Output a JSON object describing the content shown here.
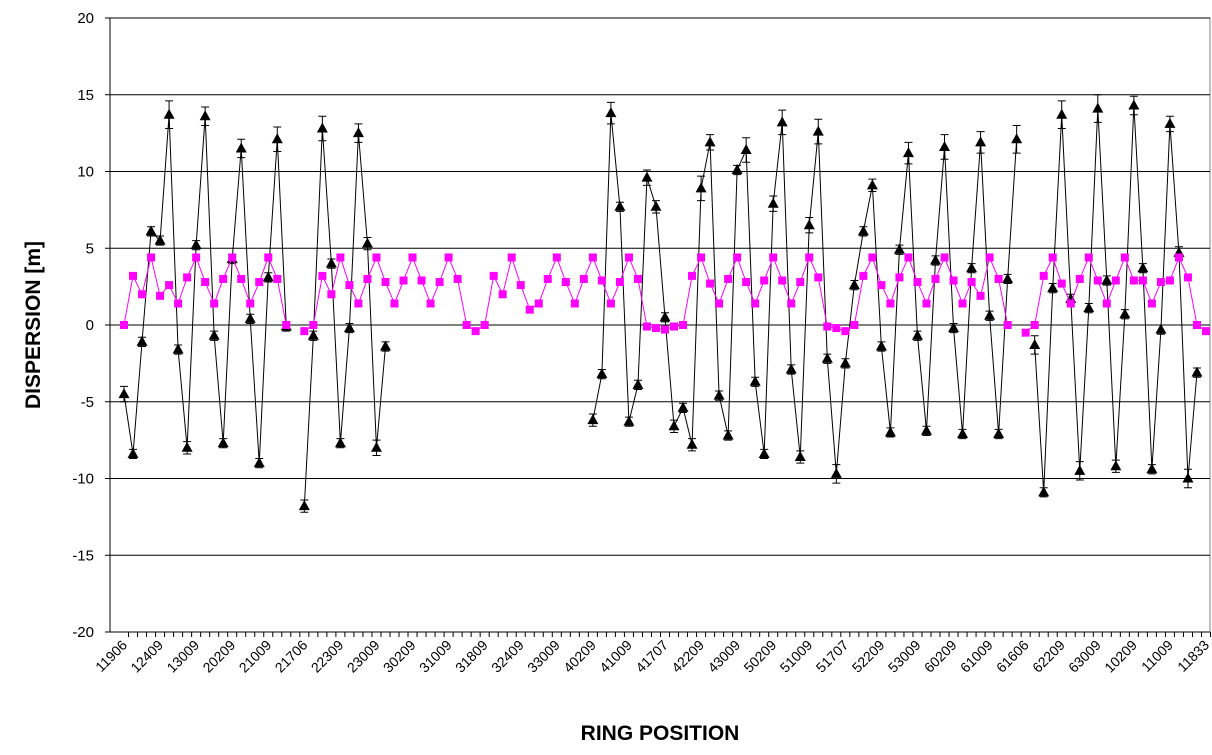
{
  "chart_data": {
    "type": "line",
    "x_label": "RING POSITION",
    "y_label": "DISPERSION  [m]",
    "ylim": [
      -20,
      20
    ],
    "yticks": [
      -20,
      -15,
      -10,
      -5,
      0,
      5,
      10,
      15,
      20
    ],
    "grid": true,
    "categories": [
      "11906",
      null,
      null,
      null,
      "12409",
      null,
      null,
      null,
      "13009",
      null,
      null,
      null,
      "20209",
      null,
      null,
      null,
      "21009",
      null,
      null,
      null,
      "21706",
      null,
      null,
      null,
      "22309",
      null,
      null,
      null,
      "23009",
      null,
      null,
      null,
      "30209",
      null,
      null,
      null,
      "31009",
      null,
      null,
      null,
      "31809",
      null,
      null,
      null,
      "32409",
      null,
      null,
      null,
      "33009",
      null,
      null,
      null,
      "40209",
      null,
      null,
      null,
      "41009",
      null,
      null,
      null,
      "41707",
      null,
      null,
      null,
      "42209",
      null,
      null,
      null,
      "43009",
      null,
      null,
      null,
      "50209",
      null,
      null,
      null,
      "51009",
      null,
      null,
      null,
      "51707",
      null,
      null,
      null,
      "52209",
      null,
      null,
      null,
      "53009",
      null,
      null,
      null,
      "60209",
      null,
      null,
      null,
      "61009",
      null,
      null,
      null,
      "61606",
      null,
      null,
      null,
      "62209",
      null,
      null,
      null,
      "63009",
      null,
      null,
      null,
      "10209",
      null,
      null,
      null,
      "11009",
      null,
      null,
      null,
      "11833"
    ],
    "series": [
      {
        "color": "#000000",
        "marker": "triangle",
        "values": [
          -4.5,
          -8.4,
          -1.1,
          6.1,
          5.5,
          13.7,
          -1.6,
          -8.0,
          5.2,
          13.6,
          -0.7,
          -7.7,
          4.3,
          11.5,
          0.4,
          -9.0,
          3.1,
          12.1,
          -0.1,
          null,
          -11.8,
          -0.7,
          12.8,
          4.0,
          -7.7,
          -0.2,
          12.5,
          5.3,
          -8.0,
          -1.4,
          null,
          null,
          null,
          null,
          null,
          null,
          null,
          null,
          null,
          null,
          null,
          null,
          null,
          null,
          null,
          null,
          null,
          null,
          null,
          null,
          null,
          null,
          -6.2,
          -3.2,
          13.8,
          7.7,
          -6.3,
          -3.9,
          9.6,
          7.7,
          0.5,
          -6.6,
          -5.4,
          -7.8,
          8.9,
          11.9,
          -4.6,
          -7.2,
          10.1,
          11.4,
          -3.7,
          -8.4,
          7.9,
          13.2,
          -2.9,
          -8.6,
          6.5,
          12.6,
          -2.2,
          -9.7,
          -2.5,
          2.6,
          6.1,
          9.1,
          -1.4,
          -7.0,
          4.9,
          11.2,
          -0.7,
          -6.9,
          4.2,
          11.6,
          -0.2,
          -7.1,
          3.7,
          11.9,
          0.6,
          -7.1,
          3.0,
          12.1,
          null,
          -1.3,
          -10.9,
          2.4,
          13.7,
          1.7,
          -9.5,
          1.1,
          14.1,
          2.9,
          -9.2,
          0.7,
          14.3,
          3.7,
          -9.4,
          -0.3,
          13.1,
          4.7,
          -10.0,
          -3.1,
          null
        ],
        "errors": [
          0.5,
          0.3,
          0.3,
          0.3,
          0.3,
          0.9,
          0.3,
          0.4,
          0.3,
          0.6,
          0.3,
          0.3,
          0.3,
          0.6,
          0.3,
          0.3,
          0.3,
          0.8,
          0.3,
          null,
          0.4,
          0.3,
          0.8,
          0.3,
          0.3,
          0.3,
          0.6,
          0.4,
          0.5,
          0.3,
          null,
          null,
          null,
          null,
          null,
          null,
          null,
          null,
          null,
          null,
          null,
          null,
          null,
          null,
          null,
          null,
          null,
          null,
          null,
          null,
          null,
          null,
          0.4,
          0.3,
          0.7,
          0.3,
          0.3,
          0.3,
          0.5,
          0.4,
          0.3,
          0.4,
          0.3,
          0.4,
          0.8,
          0.5,
          0.3,
          0.3,
          0.3,
          0.8,
          0.3,
          0.3,
          0.5,
          0.8,
          0.3,
          0.4,
          0.5,
          0.8,
          0.3,
          0.6,
          0.3,
          0.3,
          0.3,
          0.4,
          0.3,
          0.3,
          0.3,
          0.7,
          0.3,
          0.3,
          0.3,
          0.8,
          0.3,
          0.3,
          0.3,
          0.7,
          0.3,
          0.3,
          0.3,
          0.9,
          null,
          0.6,
          0.3,
          0.3,
          0.9,
          0.3,
          0.6,
          0.3,
          0.9,
          0.3,
          0.4,
          0.3,
          0.6,
          0.3,
          0.3,
          0.3,
          0.5,
          0.4,
          0.6,
          0.3,
          null
        ]
      },
      {
        "color": "#ff00ff",
        "marker": "square",
        "values": [
          0.0,
          3.2,
          2.0,
          4.4,
          1.9,
          2.6,
          1.4,
          3.1,
          4.4,
          2.8,
          1.4,
          3.0,
          4.4,
          3.0,
          1.4,
          2.8,
          4.4,
          3.0,
          0.0,
          null,
          -0.4,
          0.0,
          3.2,
          2.0,
          4.4,
          2.6,
          1.4,
          3.0,
          4.4,
          2.8,
          1.4,
          2.9,
          4.4,
          2.9,
          1.4,
          2.8,
          4.4,
          3.0,
          0.0,
          -0.4,
          0.0,
          3.2,
          2.0,
          4.4,
          2.6,
          1.0,
          1.4,
          3.0,
          4.4,
          2.8,
          1.4,
          3.0,
          4.4,
          2.9,
          1.4,
          2.8,
          4.4,
          3.0,
          -0.1,
          -0.2,
          -0.3,
          -0.1,
          0.0,
          3.2,
          4.4,
          2.7,
          1.4,
          3.0,
          4.4,
          2.8,
          1.4,
          2.9,
          4.4,
          2.9,
          1.4,
          2.8,
          4.4,
          3.1,
          -0.1,
          -0.2,
          -0.4,
          0.0,
          3.2,
          4.4,
          2.6,
          1.4,
          3.1,
          4.4,
          2.8,
          1.4,
          3.0,
          4.4,
          2.9,
          1.4,
          2.8,
          1.9,
          4.4,
          3.0,
          0.0,
          null,
          -0.5,
          0.0,
          3.2,
          4.4,
          2.7,
          1.4,
          3.0,
          4.4,
          2.9,
          1.4,
          2.9,
          4.4,
          2.9,
          2.9,
          1.4,
          2.8,
          2.9,
          4.4,
          3.1,
          0.0,
          -0.4
        ]
      }
    ]
  }
}
